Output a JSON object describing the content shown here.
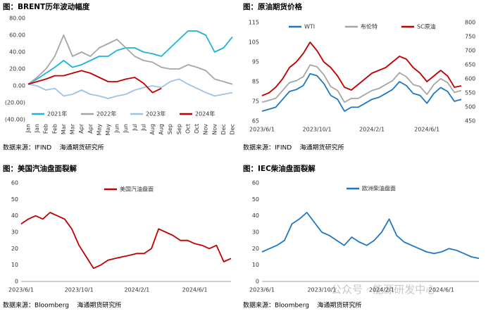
{
  "chart_data": [
    {
      "type": "line",
      "title": "图：BRENT历年波动幅度",
      "source": "数据来源：IFIND    海通期货研究所",
      "categories": [
        "Jan",
        "Jan",
        "Feb",
        "Feb",
        "Mar",
        "Mar",
        "Apr",
        "Apr",
        "May",
        "May",
        "Jun",
        "Jun",
        "Jul",
        "Jul",
        "Aug",
        "Aug",
        "Sep",
        "Sep",
        "Oct",
        "Oct",
        "Nov",
        "Nov",
        "Dec",
        "Dec"
      ],
      "ylim": [
        -40,
        80
      ],
      "yticks": [
        {
          "value": -40,
          "label": "(40.00)"
        },
        {
          "value": -20,
          "label": "(20.00)"
        },
        {
          "value": 0,
          "label": "0.00"
        },
        {
          "value": 20,
          "label": "20.00"
        },
        {
          "value": 40,
          "label": "40.00"
        },
        {
          "value": 60,
          "label": "60.00"
        },
        {
          "value": 80,
          "label": "80.00"
        }
      ],
      "series": [
        {
          "name": "2021年",
          "color": "#1fb3d6",
          "values": [
            2,
            8,
            15,
            22,
            30,
            22,
            25,
            30,
            35,
            35,
            42,
            45,
            45,
            40,
            38,
            35,
            45,
            55,
            65,
            65,
            60,
            40,
            45,
            58
          ]
        },
        {
          "name": "2022年",
          "color": "#a6a6a6",
          "values": [
            2,
            10,
            20,
            35,
            60,
            35,
            40,
            35,
            45,
            50,
            55,
            45,
            35,
            30,
            28,
            22,
            20,
            20,
            25,
            22,
            18,
            8,
            5,
            2
          ]
        },
        {
          "name": "2023年",
          "color": "#9dc3e6",
          "values": [
            2,
            0,
            -5,
            -3,
            -12,
            -10,
            -5,
            -10,
            -12,
            -15,
            -12,
            -10,
            -5,
            -2,
            0,
            -2,
            5,
            8,
            2,
            -3,
            -8,
            -12,
            -10,
            -8
          ]
        },
        {
          "name": "2024年",
          "color": "#c00000",
          "values": [
            2,
            5,
            8,
            12,
            12,
            15,
            18,
            15,
            10,
            5,
            5,
            8,
            10,
            3,
            -8,
            -3,
            null,
            null,
            null,
            null,
            null,
            null,
            null,
            null
          ]
        }
      ]
    },
    {
      "type": "line",
      "title": "图：原油期货价格",
      "source": "数据来源：IFIND    海通期货研究所",
      "categories": [
        "2023/6/1",
        null,
        null,
        null,
        null,
        null,
        null,
        null,
        "2023/10/1",
        null,
        null,
        null,
        null,
        null,
        null,
        null,
        "2024/2/1",
        null,
        null,
        null,
        null,
        null,
        null,
        null,
        "2024/6/1",
        null,
        null,
        null,
        null,
        null
      ],
      "ylim": [
        65,
        115
      ],
      "yticks": [
        65,
        75,
        85,
        95,
        105,
        115
      ],
      "y2lim": [
        450,
        800
      ],
      "y2ticks": [
        450,
        500,
        550,
        600,
        650,
        700,
        750,
        800
      ],
      "series": [
        {
          "name": "WTI",
          "color": "#1f77c4",
          "values": [
            70,
            71,
            72,
            76,
            80,
            81,
            83,
            89,
            88,
            84,
            78,
            76,
            70,
            72,
            72,
            74,
            76,
            77,
            79,
            81,
            85,
            83,
            79,
            78,
            74,
            79,
            82,
            80,
            75,
            76
          ]
        },
        {
          "name": "布伦特",
          "color": "#a6a6a6",
          "values": [
            74.5,
            75.5,
            76.5,
            80.5,
            84.5,
            85.5,
            87.5,
            93.5,
            92.5,
            88.5,
            82.5,
            80.5,
            74.5,
            76.5,
            76.5,
            78.5,
            80.5,
            81.5,
            83.5,
            85.5,
            89.5,
            87.5,
            83.5,
            82.5,
            78.5,
            83.5,
            86.5,
            84.5,
            79.5,
            80.5
          ]
        },
        {
          "name": "SC原油",
          "color": "#c00000",
          "axis": "y2",
          "values": [
            540,
            550,
            570,
            600,
            640,
            660,
            690,
            730,
            700,
            660,
            640,
            610,
            570,
            560,
            580,
            600,
            620,
            630,
            640,
            660,
            680,
            670,
            640,
            620,
            590,
            610,
            630,
            610,
            570,
            575
          ]
        }
      ]
    },
    {
      "type": "line",
      "title": "图：美国汽油盘面裂解",
      "source": "数据来源：Bloomberg    海通期货研究所",
      "categories": [
        "2023/6/1",
        null,
        null,
        null,
        null,
        null,
        null,
        null,
        "2023/10/1",
        null,
        null,
        null,
        null,
        null,
        null,
        null,
        "2024/2/1",
        null,
        null,
        null,
        null,
        null,
        null,
        null,
        "2024/6/1",
        null,
        null,
        null,
        null,
        null
      ],
      "ylim": [
        0,
        60
      ],
      "yticks": [
        0,
        10,
        20,
        30,
        40,
        50,
        60
      ],
      "series": [
        {
          "name": "美国汽油盘面",
          "color": "#c00000",
          "values": [
            35,
            38,
            40,
            38,
            42,
            40,
            38,
            32,
            22,
            15,
            8,
            10,
            13,
            14,
            15,
            16,
            17,
            17,
            20,
            32,
            30,
            28,
            25,
            25,
            23,
            22,
            20,
            22,
            12,
            14
          ]
        }
      ]
    },
    {
      "type": "line",
      "title": "图：IEC柴油盘面裂解",
      "source": "数据来源：Bloomberg    海通期货研究所",
      "categories": [
        "2023/6/1",
        null,
        null,
        null,
        null,
        null,
        null,
        null,
        "2023/10/1",
        null,
        null,
        null,
        null,
        null,
        null,
        null,
        "2024/2/1",
        null,
        null,
        null,
        null,
        null,
        null,
        null,
        "2024/6/1",
        null,
        null,
        null,
        null,
        null
      ],
      "ylim": [
        0,
        60
      ],
      "yticks": [
        0,
        10,
        20,
        30,
        40,
        50,
        60
      ],
      "series": [
        {
          "name": "欧洲柴油盘面",
          "color": "#1f77c4",
          "values": [
            18,
            20,
            22,
            25,
            35,
            38,
            42,
            36,
            30,
            28,
            25,
            22,
            27,
            24,
            22,
            25,
            30,
            38,
            28,
            24,
            22,
            20,
            18,
            17,
            18,
            20,
            19,
            17,
            15,
            14
          ]
        }
      ]
    }
  ],
  "watermark": "公众号 · 能源研发中心"
}
